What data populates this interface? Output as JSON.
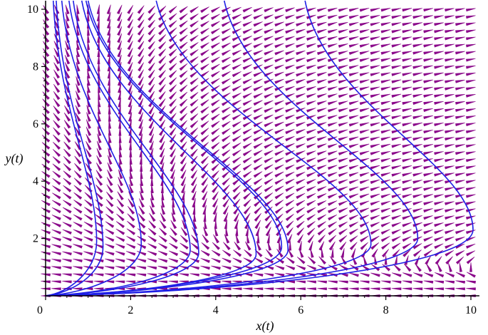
{
  "chart_data": {
    "type": "phase_portrait",
    "xlabel": "x(t)",
    "ylabel": "y(t)",
    "xlim": [
      0,
      10.2
    ],
    "ylim": [
      0,
      10.3
    ],
    "xticks": [
      0,
      2,
      4,
      6,
      8,
      10
    ],
    "yticks": [
      2,
      4,
      6,
      8,
      10
    ],
    "tick_labels_x": [
      "0",
      "2",
      "4",
      "6",
      "8",
      "10"
    ],
    "tick_labels_y": [
      "2",
      "4",
      "6",
      "8",
      "10"
    ],
    "field": {
      "x_range": [
        0,
        10
      ],
      "y_range": [
        0,
        10
      ],
      "spacing": 0.25,
      "color": "#8B0A8B",
      "slope_model": "dy/dx = -2.5*y / (10 - x*y)",
      "arrow_style": "dart"
    },
    "solution_curves": {
      "color": "#1F1FE6",
      "curves": [
        {
          "turning_point": [
            1.2,
            1.9
          ],
          "top_x": 0.18
        },
        {
          "turning_point": [
            1.35,
            1.7
          ],
          "top_x": 0.25
        },
        {
          "turning_point": [
            2.25,
            1.8
          ],
          "top_x": 0.38
        },
        {
          "turning_point": [
            3.4,
            1.6
          ],
          "top_x": 0.55
        },
        {
          "turning_point": [
            3.6,
            1.5
          ],
          "top_x": 0.65
        },
        {
          "turning_point": [
            4.95,
            1.45
          ],
          "top_x": 0.85
        },
        {
          "turning_point": [
            5.55,
            1.7
          ],
          "top_x": 0.95
        },
        {
          "turning_point": [
            5.7,
            1.6
          ],
          "top_x": 1.0
        },
        {
          "turning_point": [
            7.65,
            1.8
          ],
          "top_x": 2.6
        },
        {
          "turning_point": [
            8.75,
            2.0
          ],
          "top_x": 4.2
        },
        {
          "turning_point": [
            10.05,
            2.3
          ],
          "top_x": 6.1
        }
      ]
    }
  }
}
